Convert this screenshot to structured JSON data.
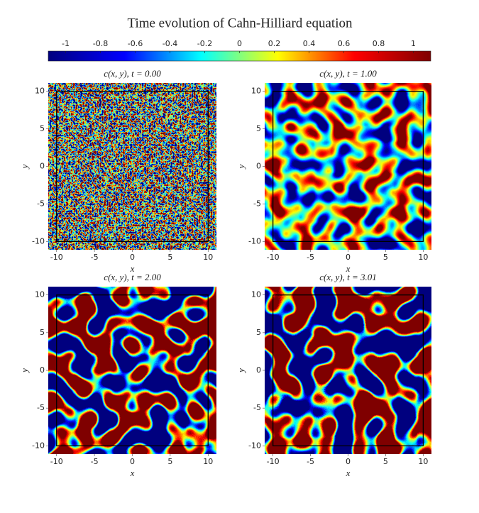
{
  "title": "Time evolution of Cahn-Hilliard equation",
  "colorbar": {
    "clim": [
      -1.1,
      1.1
    ],
    "ticks": [
      -1,
      -0.8,
      -0.6,
      -0.4,
      -0.2,
      0,
      0.2,
      0.4,
      0.6,
      0.8,
      1
    ],
    "colormap": [
      "#00007f",
      "#0000ff",
      "#00ffff",
      "#ffff00",
      "#ff0000",
      "#7f0000"
    ]
  },
  "chart_data": [
    {
      "type": "heatmap",
      "title": "c(x, y), t = 0.00",
      "xlabel": "x",
      "ylabel": "y",
      "xlim": [
        -11.1,
        11.1
      ],
      "ylim": [
        -11.1,
        11.1
      ],
      "xticks": [
        -10,
        -5,
        0,
        5,
        10
      ],
      "yticks": [
        -10,
        -5,
        0,
        5,
        10
      ]
    },
    {
      "type": "heatmap",
      "title": "c(x, y), t = 1.00",
      "xlabel": "x",
      "ylabel": "y",
      "xlim": [
        -11.1,
        11.1
      ],
      "ylim": [
        -11.1,
        11.1
      ],
      "xticks": [
        -10,
        -5,
        0,
        5,
        10
      ],
      "yticks": [
        -10,
        -5,
        0,
        5,
        10
      ]
    },
    {
      "type": "heatmap",
      "title": "c(x, y), t = 2.00",
      "xlabel": "x",
      "ylabel": "y",
      "xlim": [
        -11.1,
        11.1
      ],
      "ylim": [
        -11.1,
        11.1
      ],
      "xticks": [
        -10,
        -5,
        0,
        5,
        10
      ],
      "yticks": [
        -10,
        -5,
        0,
        5,
        10
      ]
    },
    {
      "type": "heatmap",
      "title": "c(x, y), t = 3.01",
      "xlabel": "x",
      "ylabel": "y",
      "xlim": [
        -11.1,
        11.1
      ],
      "ylim": [
        -11.1,
        11.1
      ],
      "xticks": [
        -10,
        -5,
        0,
        5,
        10
      ],
      "yticks": [
        -10,
        -5,
        0,
        5,
        10
      ]
    }
  ]
}
